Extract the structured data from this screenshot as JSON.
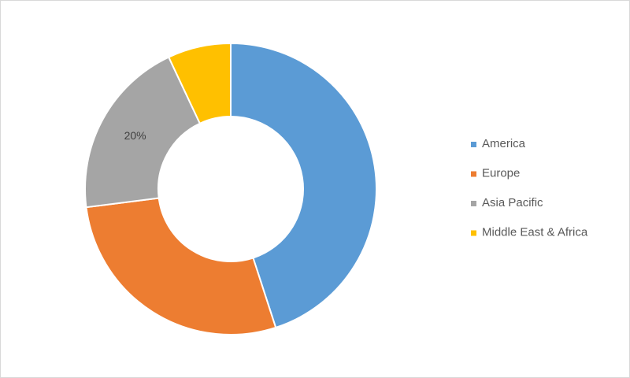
{
  "chart_data": {
    "type": "donut",
    "categories": [
      "America",
      "Europe",
      "Asia Pacific",
      "Middle East & Africa"
    ],
    "values": [
      45,
      28,
      20,
      7
    ],
    "value_labels": [
      null,
      null,
      "20%",
      null
    ],
    "colors": [
      "#5b9bd5",
      "#ed7d31",
      "#a5a5a5",
      "#ffc000"
    ],
    "legend": "right"
  }
}
